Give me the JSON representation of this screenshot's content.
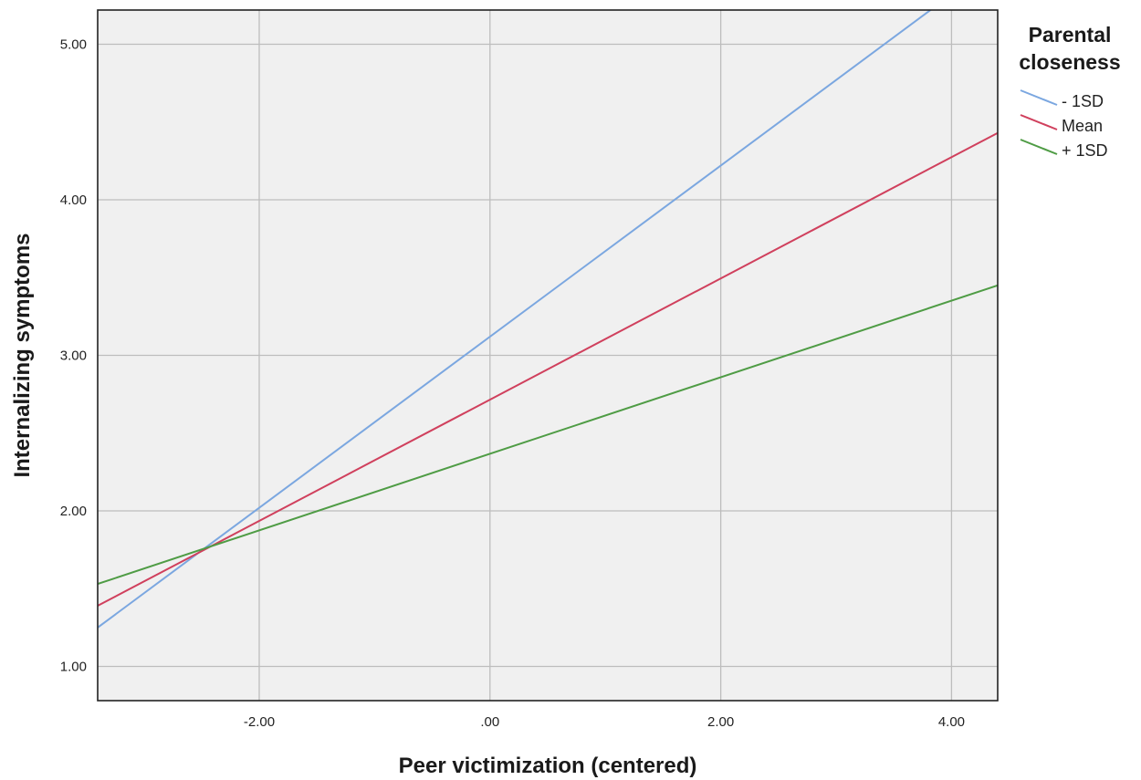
{
  "chart_data": {
    "type": "line",
    "xlabel": "Peer victimization (centered)",
    "ylabel": "Internalizing symptoms",
    "xlim": [
      -3.4,
      4.4
    ],
    "ylim": [
      0.78,
      5.22
    ],
    "x_ticks": [
      -2,
      0,
      2,
      4
    ],
    "x_tick_labels": [
      "-2.00",
      ".00",
      "2.00",
      "4.00"
    ],
    "y_ticks": [
      1,
      2,
      3,
      4,
      5
    ],
    "y_tick_labels": [
      "1.00",
      "2.00",
      "3.00",
      "4.00",
      "5.00"
    ],
    "grid": true,
    "legend": {
      "title": "Parental closeness",
      "title_lines": [
        "Parental",
        "closeness"
      ],
      "placement": "right"
    },
    "series": [
      {
        "name": "- 1SD",
        "color": "#7ba7e0",
        "x": [
          -3.4,
          4.4
        ],
        "y": [
          1.25,
          5.54
        ]
      },
      {
        "name": "Mean",
        "color": "#d0405d",
        "x": [
          -3.4,
          4.4
        ],
        "y": [
          1.39,
          4.43
        ]
      },
      {
        "name": "+ 1SD",
        "color": "#4f9c45",
        "x": [
          -3.4,
          4.4
        ],
        "y": [
          1.53,
          3.45
        ]
      }
    ]
  }
}
